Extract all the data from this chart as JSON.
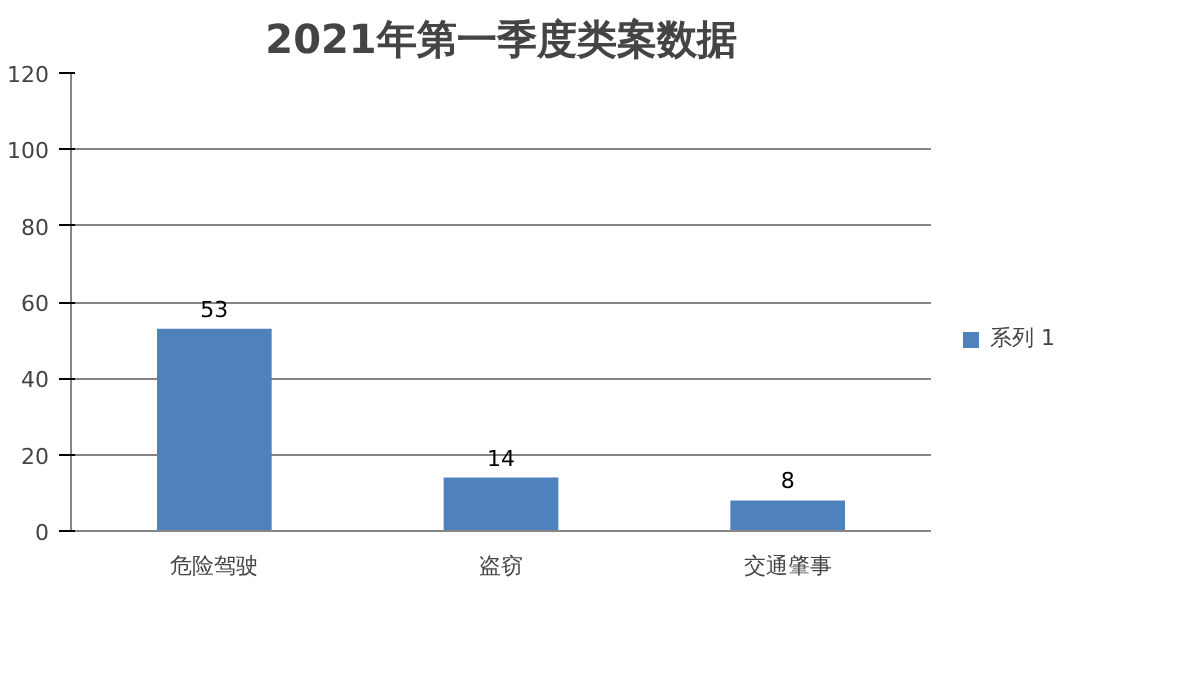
{
  "chart_data": {
    "type": "bar",
    "title": "2021年第一季度类案数据",
    "categories": [
      "危险驾驶",
      "盗窃",
      "交通肇事"
    ],
    "series": [
      {
        "name": "系列 1",
        "color": "#4f81bd",
        "values": [
          53,
          14,
          8
        ]
      }
    ],
    "ylim": [
      0,
      120
    ],
    "yticks": [
      0,
      20,
      40,
      60,
      80,
      100,
      120
    ],
    "grid": "y",
    "legend": "right",
    "data_labels": true
  }
}
